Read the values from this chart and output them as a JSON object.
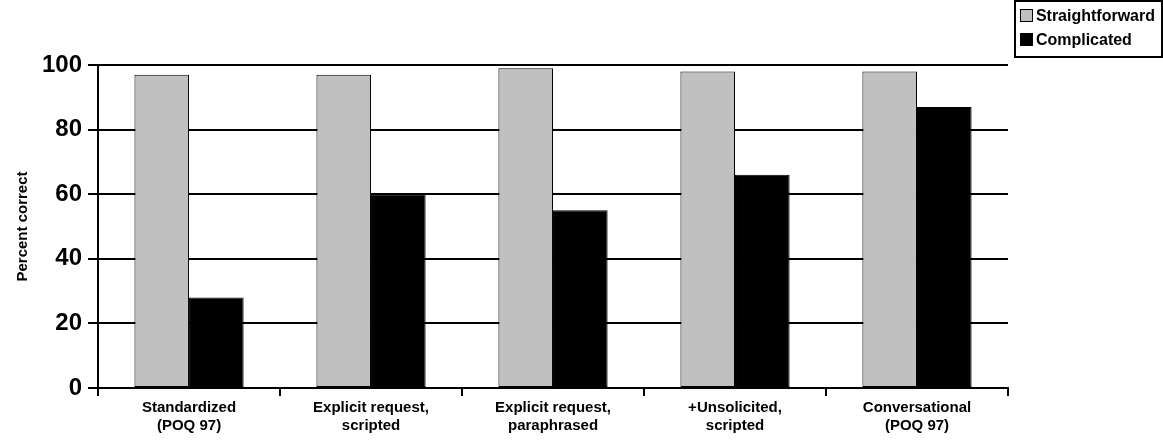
{
  "chart_data": {
    "type": "bar",
    "ylabel": "Percent correct",
    "categories": [
      "Standardized (POQ 97)",
      "Explicit request, scripted",
      "Explicit request, paraphrased",
      "+Unsolicited, scripted",
      "Conversational (POQ 97)"
    ],
    "series": [
      {
        "name": "Straightforward",
        "color": "#c0c0c0",
        "values": [
          97,
          97,
          99,
          98,
          98
        ]
      },
      {
        "name": "Complicated",
        "color": "#000000",
        "values": [
          28,
          60,
          55,
          66,
          87
        ]
      }
    ],
    "ylim": [
      0,
      100
    ],
    "yticks": [
      0,
      20,
      40,
      60,
      80,
      100
    ],
    "grid": "y",
    "legend": "top right"
  }
}
